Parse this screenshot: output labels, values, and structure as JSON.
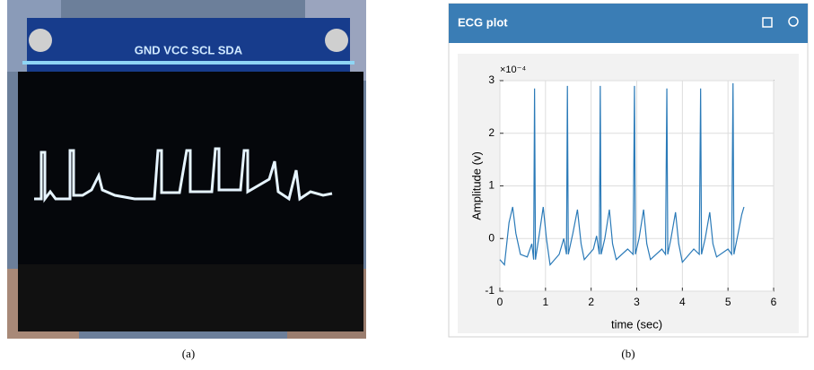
{
  "panel_a": {
    "caption": "(a)",
    "connector_label": "GND VCC SCL SDA"
  },
  "panel_b": {
    "caption": "(b)",
    "widget_title": "ECG plot"
  },
  "chart_data": {
    "type": "line",
    "xlabel": "time (sec)",
    "ylabel": "Amplitude (v)",
    "y_exponent_label": "×10⁻⁴",
    "color": "#2a7ab8",
    "grid": true,
    "xlim": [
      0,
      6
    ],
    "xticks": [
      0,
      1,
      2,
      3,
      4,
      5,
      6
    ],
    "ylim": [
      -1,
      3
    ],
    "yticks": [
      -1,
      0,
      1,
      2,
      3
    ],
    "x": [
      0,
      0.1,
      0.2,
      0.28,
      0.35,
      0.45,
      0.6,
      0.7,
      0.74,
      0.76,
      0.78,
      0.85,
      0.95,
      1.02,
      1.1,
      1.3,
      1.4,
      1.46,
      1.48,
      1.5,
      1.6,
      1.7,
      1.78,
      1.85,
      2.05,
      2.12,
      2.18,
      2.2,
      2.22,
      2.3,
      2.4,
      2.47,
      2.55,
      2.8,
      2.92,
      2.95,
      2.97,
      3.05,
      3.15,
      3.22,
      3.3,
      3.55,
      3.63,
      3.66,
      3.68,
      3.75,
      3.85,
      3.92,
      4.0,
      4.25,
      4.37,
      4.4,
      4.42,
      4.5,
      4.6,
      4.67,
      4.75,
      5.0,
      5.08,
      5.11,
      5.13,
      5.2,
      5.3,
      5.35
    ],
    "values": [
      -0.4,
      -0.5,
      0.3,
      0.6,
      0.1,
      -0.3,
      -0.35,
      -0.1,
      -0.4,
      2.85,
      -0.4,
      0.0,
      0.6,
      0.0,
      -0.5,
      -0.3,
      0.0,
      -0.3,
      2.9,
      -0.3,
      0.1,
      0.55,
      -0.1,
      -0.4,
      -0.2,
      0.05,
      -0.3,
      2.9,
      -0.3,
      0.0,
      0.55,
      -0.1,
      -0.4,
      -0.2,
      -0.3,
      2.9,
      -0.3,
      0.0,
      0.55,
      -0.1,
      -0.4,
      -0.2,
      -0.3,
      2.85,
      -0.3,
      0.0,
      0.5,
      -0.1,
      -0.45,
      -0.2,
      -0.3,
      2.85,
      -0.3,
      0.0,
      0.5,
      -0.1,
      -0.35,
      -0.2,
      -0.3,
      2.95,
      -0.3,
      0.0,
      0.45,
      0.6
    ]
  }
}
